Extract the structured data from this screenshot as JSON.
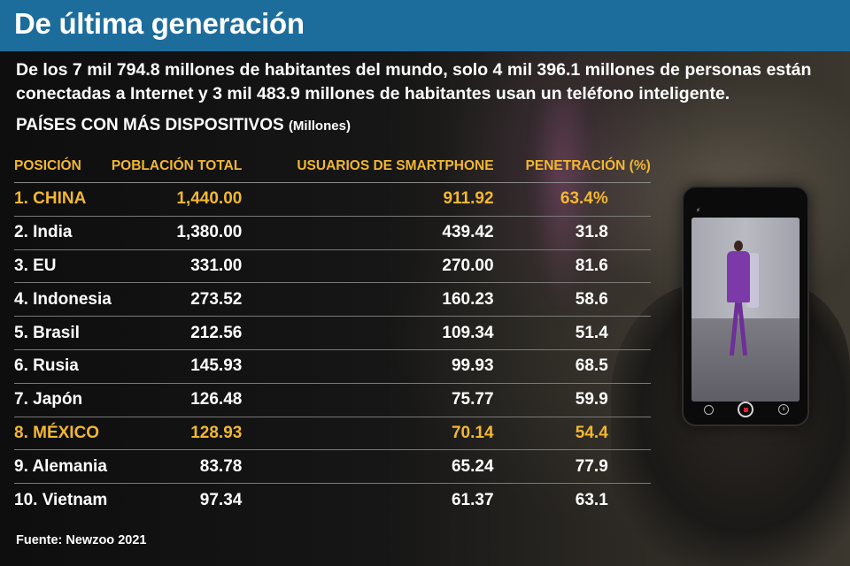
{
  "header": {
    "title": "De última generación",
    "subtitle": "De los 7 mil 794.8 millones de habitantes del mundo, solo 4 mil 396.1 millones de personas están conectadas a Internet y 3 mil 483.9 millones de habitantes usan un teléfono inteligente.",
    "section_title": "PAÍSES CON MÁS DISPOSITIVOS",
    "section_unit": "(Millones)"
  },
  "colors": {
    "title_band": "#1c6d9c",
    "highlight": "#f2b732",
    "text": "#ffffff"
  },
  "chart_data": {
    "type": "table",
    "title": "PAÍSES CON MÁS DISPOSITIVOS (Millones)",
    "columns": [
      "POSICIÓN",
      "POBLACIÓN TOTAL",
      "USUARIOS DE SMARTPHONE",
      "PENETRACIÓN (%)"
    ],
    "rows": [
      {
        "position": "1. CHINA",
        "population": "1,440.00",
        "smartphone_users": "911.92",
        "penetration": "63.4%",
        "highlight": true
      },
      {
        "position": "2. India",
        "population": "1,380.00",
        "smartphone_users": "439.42",
        "penetration": "31.8",
        "highlight": false
      },
      {
        "position": "3. EU",
        "population": "331.00",
        "smartphone_users": "270.00",
        "penetration": "81.6",
        "highlight": false
      },
      {
        "position": "4. Indonesia",
        "population": "273.52",
        "smartphone_users": "160.23",
        "penetration": "58.6",
        "highlight": false
      },
      {
        "position": "5. Brasil",
        "population": "212.56",
        "smartphone_users": "109.34",
        "penetration": "51.4",
        "highlight": false
      },
      {
        "position": "6. Rusia",
        "population": "145.93",
        "smartphone_users": "99.93",
        "penetration": "68.5",
        "highlight": false
      },
      {
        "position": "7. Japón",
        "population": "126.48",
        "smartphone_users": "75.77",
        "penetration": "59.9",
        "highlight": false
      },
      {
        "position": "8. MÉXICO",
        "population": "128.93",
        "smartphone_users": "70.14",
        "penetration": "54.4",
        "highlight": true
      },
      {
        "position": "9. Alemania",
        "population": "83.78",
        "smartphone_users": "65.24",
        "penetration": "77.9",
        "highlight": false
      },
      {
        "position": "10. Vietnam",
        "population": "97.34",
        "smartphone_users": "61.37",
        "penetration": "63.1",
        "highlight": false
      }
    ]
  },
  "footer": {
    "source": "Fuente: Newzoo 2021"
  },
  "photo": {
    "phone_status": "⚡",
    "icons": [
      "camera-switch-icon",
      "record-button-icon",
      "pause-icon"
    ]
  }
}
